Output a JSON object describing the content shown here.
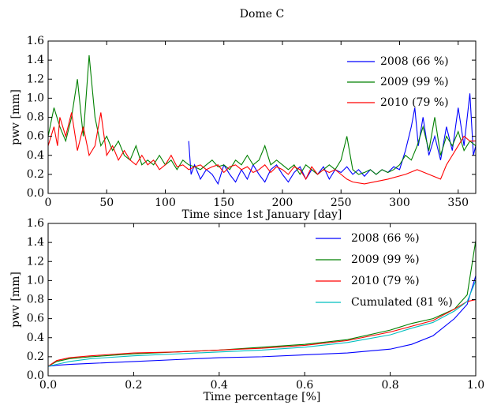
{
  "chart_data": [
    {
      "type": "line",
      "title": "Dome C",
      "x_label": "Time since 1st January [day]",
      "y_label": "pwv [mm]",
      "xlim": [
        0,
        365
      ],
      "ylim": [
        0,
        1.6
      ],
      "xticks": [
        0,
        50,
        100,
        150,
        200,
        250,
        300,
        350
      ],
      "yticks": [
        {
          "value": 0,
          "label": "0.0"
        },
        {
          "value": 0.2,
          "label": "0.2"
        },
        {
          "value": 0.4,
          "label": "0.4"
        },
        {
          "value": 0.6,
          "label": "0.6"
        },
        {
          "value": 0.8,
          "label": "0.8"
        },
        {
          "value": 1,
          "label": "1.0"
        },
        {
          "value": 1.2,
          "label": "1.2"
        },
        {
          "value": 1.4,
          "label": "1.4"
        },
        {
          "value": 1.6,
          "label": "1.6"
        }
      ],
      "legend": "upper right",
      "series": [
        {
          "name": "2008 (66 %)",
          "color": "#0000ff",
          "x": [
            120,
            122,
            125,
            130,
            135,
            140,
            145,
            150,
            155,
            160,
            165,
            170,
            175,
            180,
            185,
            190,
            195,
            200,
            205,
            210,
            215,
            220,
            225,
            230,
            235,
            240,
            245,
            250,
            255,
            260,
            265,
            270,
            275,
            280,
            285,
            290,
            295,
            300,
            305,
            310,
            313,
            316,
            320,
            325,
            330,
            335,
            340,
            345,
            350,
            355,
            360,
            363,
            365
          ],
          "values": [
            0.55,
            0.2,
            0.3,
            0.15,
            0.25,
            0.2,
            0.1,
            0.3,
            0.2,
            0.12,
            0.25,
            0.15,
            0.3,
            0.2,
            0.12,
            0.25,
            0.3,
            0.2,
            0.12,
            0.22,
            0.28,
            0.15,
            0.25,
            0.2,
            0.28,
            0.15,
            0.25,
            0.22,
            0.28,
            0.2,
            0.25,
            0.18,
            0.25,
            0.2,
            0.25,
            0.22,
            0.28,
            0.25,
            0.45,
            0.7,
            0.9,
            0.5,
            0.8,
            0.4,
            0.6,
            0.35,
            0.7,
            0.45,
            0.9,
            0.5,
            1.05,
            0.4,
            0.5
          ]
        },
        {
          "name": "2009 (99 %)",
          "color": "#008000",
          "x": [
            0,
            5,
            10,
            15,
            20,
            25,
            30,
            35,
            40,
            45,
            50,
            55,
            60,
            65,
            70,
            75,
            80,
            85,
            90,
            95,
            100,
            105,
            110,
            115,
            120,
            125,
            130,
            135,
            140,
            145,
            150,
            155,
            160,
            165,
            170,
            175,
            180,
            185,
            190,
            195,
            200,
            205,
            210,
            215,
            220,
            225,
            230,
            235,
            240,
            245,
            250,
            255,
            260,
            265,
            270,
            275,
            280,
            285,
            290,
            295,
            300,
            305,
            310,
            315,
            320,
            325,
            330,
            335,
            340,
            345,
            350,
            355,
            360,
            365
          ],
          "values": [
            0.6,
            0.9,
            0.7,
            0.55,
            0.8,
            1.2,
            0.6,
            1.45,
            0.8,
            0.5,
            0.6,
            0.45,
            0.55,
            0.4,
            0.35,
            0.5,
            0.3,
            0.35,
            0.3,
            0.4,
            0.3,
            0.35,
            0.25,
            0.35,
            0.3,
            0.28,
            0.25,
            0.3,
            0.35,
            0.28,
            0.3,
            0.25,
            0.35,
            0.3,
            0.4,
            0.3,
            0.35,
            0.5,
            0.3,
            0.35,
            0.3,
            0.25,
            0.3,
            0.2,
            0.3,
            0.25,
            0.2,
            0.25,
            0.3,
            0.25,
            0.35,
            0.6,
            0.25,
            0.2,
            0.22,
            0.25,
            0.2,
            0.25,
            0.22,
            0.25,
            0.3,
            0.4,
            0.35,
            0.5,
            0.7,
            0.45,
            0.8,
            0.4,
            0.6,
            0.5,
            0.65,
            0.45,
            0.55,
            0.5
          ]
        },
        {
          "name": "2010 (79 %)",
          "color": "#ff0000",
          "x": [
            0,
            5,
            8,
            10,
            15,
            20,
            25,
            30,
            35,
            40,
            45,
            50,
            55,
            60,
            65,
            70,
            75,
            80,
            85,
            90,
            95,
            100,
            105,
            110,
            115,
            120,
            125,
            130,
            135,
            140,
            145,
            150,
            155,
            160,
            165,
            170,
            175,
            180,
            185,
            190,
            195,
            200,
            205,
            210,
            215,
            220,
            225,
            230,
            235,
            240,
            245,
            250,
            255,
            260,
            270,
            290,
            305,
            315,
            325,
            335,
            340,
            345,
            350,
            355,
            360,
            365
          ],
          "values": [
            0.5,
            0.7,
            0.5,
            0.8,
            0.6,
            0.85,
            0.45,
            0.7,
            0.4,
            0.5,
            0.85,
            0.4,
            0.5,
            0.35,
            0.45,
            0.35,
            0.3,
            0.4,
            0.3,
            0.35,
            0.25,
            0.3,
            0.4,
            0.28,
            0.3,
            0.25,
            0.28,
            0.3,
            0.25,
            0.28,
            0.3,
            0.22,
            0.28,
            0.3,
            0.25,
            0.28,
            0.22,
            0.25,
            0.3,
            0.22,
            0.28,
            0.25,
            0.2,
            0.28,
            0.25,
            0.15,
            0.28,
            0.2,
            0.25,
            0.22,
            0.25,
            0.2,
            0.15,
            0.12,
            0.1,
            0.15,
            0.2,
            0.25,
            0.2,
            0.15,
            0.3,
            0.4,
            0.5,
            0.6,
            0.55,
            0.55
          ]
        }
      ]
    },
    {
      "type": "line",
      "x_label": "Time percentage [%]",
      "y_label": "pwv [mm]",
      "xlim": [
        0,
        1
      ],
      "ylim": [
        0,
        1.6
      ],
      "xticks": [
        {
          "value": 0,
          "label": "0.0"
        },
        {
          "value": 0.2,
          "label": "0.2"
        },
        {
          "value": 0.4,
          "label": "0.4"
        },
        {
          "value": 0.6,
          "label": "0.6"
        },
        {
          "value": 0.8,
          "label": "0.8"
        },
        {
          "value": 1,
          "label": "1.0"
        }
      ],
      "yticks": [
        {
          "value": 0,
          "label": "0.0"
        },
        {
          "value": 0.2,
          "label": "0.2"
        },
        {
          "value": 0.4,
          "label": "0.4"
        },
        {
          "value": 0.6,
          "label": "0.6"
        },
        {
          "value": 0.8,
          "label": "0.8"
        },
        {
          "value": 1,
          "label": "1.0"
        },
        {
          "value": 1.2,
          "label": "1.2"
        },
        {
          "value": 1.4,
          "label": "1.4"
        },
        {
          "value": 1.6,
          "label": "1.6"
        }
      ],
      "legend": "upper right",
      "series": [
        {
          "name": "2008 (66 %)",
          "color": "#0000ff",
          "x": [
            0,
            0.02,
            0.05,
            0.1,
            0.2,
            0.3,
            0.4,
            0.5,
            0.6,
            0.7,
            0.8,
            0.85,
            0.9,
            0.95,
            0.98,
            1
          ],
          "values": [
            0.1,
            0.11,
            0.12,
            0.13,
            0.15,
            0.17,
            0.19,
            0.2,
            0.22,
            0.24,
            0.28,
            0.33,
            0.42,
            0.6,
            0.75,
            1.05
          ]
        },
        {
          "name": "2009 (99 %)",
          "color": "#008000",
          "x": [
            0,
            0.02,
            0.05,
            0.1,
            0.2,
            0.3,
            0.4,
            0.5,
            0.6,
            0.7,
            0.8,
            0.85,
            0.9,
            0.95,
            0.98,
            1
          ],
          "values": [
            0.1,
            0.15,
            0.18,
            0.2,
            0.23,
            0.25,
            0.27,
            0.3,
            0.33,
            0.38,
            0.48,
            0.55,
            0.6,
            0.7,
            0.85,
            1.42
          ]
        },
        {
          "name": "2010 (79 %)",
          "color": "#ff0000",
          "x": [
            0,
            0.02,
            0.05,
            0.1,
            0.2,
            0.3,
            0.4,
            0.5,
            0.6,
            0.7,
            0.8,
            0.85,
            0.9,
            0.95,
            0.98,
            1
          ],
          "values": [
            0.1,
            0.16,
            0.19,
            0.21,
            0.24,
            0.25,
            0.27,
            0.29,
            0.32,
            0.37,
            0.46,
            0.52,
            0.58,
            0.7,
            0.78,
            0.8
          ]
        },
        {
          "name": "Cumulated (81 %)",
          "color": "#00bfbf",
          "x": [
            0,
            0.02,
            0.05,
            0.1,
            0.2,
            0.3,
            0.4,
            0.5,
            0.6,
            0.7,
            0.8,
            0.85,
            0.9,
            0.95,
            0.98,
            1
          ],
          "values": [
            0.1,
            0.12,
            0.15,
            0.18,
            0.21,
            0.23,
            0.25,
            0.27,
            0.3,
            0.35,
            0.43,
            0.5,
            0.56,
            0.68,
            0.78,
            1.0
          ]
        }
      ]
    }
  ]
}
